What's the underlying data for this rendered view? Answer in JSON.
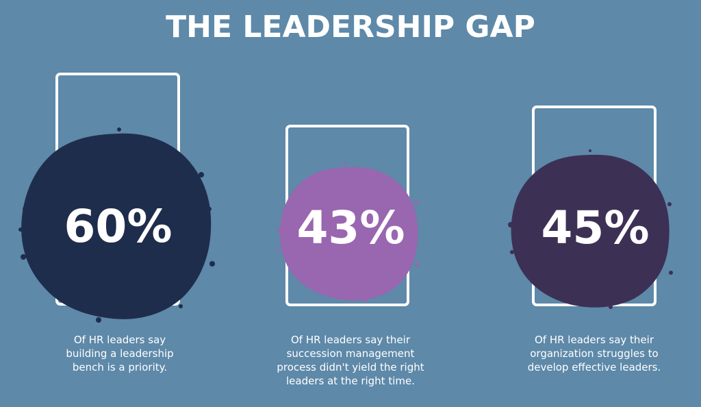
{
  "title": "THE LEADERSHIP GAP",
  "colors": {
    "background": "#5e89a9",
    "stat_1": "#1f2d4c",
    "stat_2": "#9966b0",
    "stat_3": "#3d3055"
  },
  "stats": [
    {
      "value": "60%",
      "percent": 60,
      "caption_lines": [
        "Of HR leaders say",
        "building a leadership",
        "bench is a priority."
      ]
    },
    {
      "value": "43%",
      "percent": 43,
      "caption_lines": [
        "Of HR leaders say their",
        "succession management",
        "process didn't yield the right",
        "leaders at the right time."
      ]
    },
    {
      "value": "45%",
      "percent": 45,
      "caption_lines": [
        "Of HR leaders say their",
        "organization struggles to",
        "develop effective leaders."
      ]
    }
  ]
}
